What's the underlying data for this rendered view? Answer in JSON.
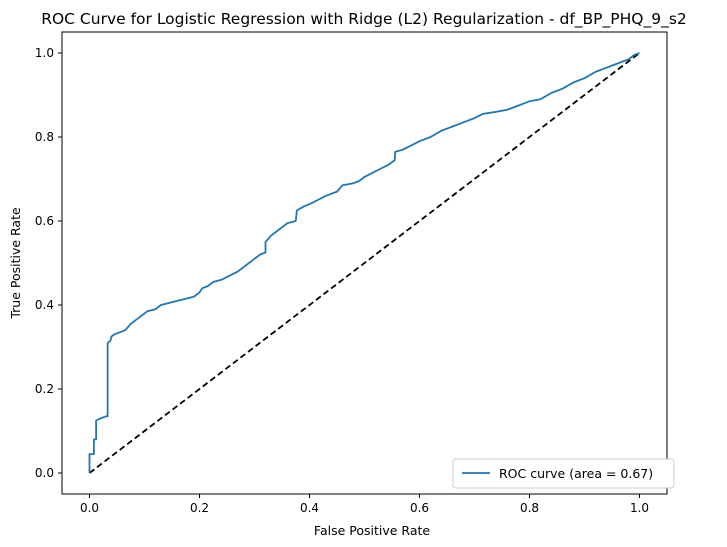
{
  "chart_data": {
    "type": "line",
    "title": "ROC Curve for Logistic Regression with Ridge (L2) Regularization - df_BP_PHQ_9_s2",
    "xlabel": "False Positive Rate",
    "ylabel": "True Positive Rate",
    "xlim": [
      -0.05,
      1.05
    ],
    "ylim": [
      -0.05,
      1.05
    ],
    "xticks": [
      0.0,
      0.2,
      0.4,
      0.6,
      0.8,
      1.0
    ],
    "yticks": [
      0.0,
      0.2,
      0.4,
      0.6,
      0.8,
      1.0
    ],
    "xtick_labels": [
      "0.0",
      "0.2",
      "0.4",
      "0.6",
      "0.8",
      "1.0"
    ],
    "ytick_labels": [
      "0.0",
      "0.2",
      "0.4",
      "0.6",
      "0.8",
      "1.0"
    ],
    "grid": false,
    "legend_position": "lower-right",
    "series": [
      {
        "name": "ROC curve (area = 0.67)",
        "color": "#1f77b4",
        "style": "solid",
        "step": true,
        "points": [
          [
            0.0,
            0.0
          ],
          [
            0.0,
            0.045
          ],
          [
            0.008,
            0.045
          ],
          [
            0.008,
            0.08
          ],
          [
            0.012,
            0.08
          ],
          [
            0.012,
            0.125
          ],
          [
            0.02,
            0.13
          ],
          [
            0.03,
            0.135
          ],
          [
            0.033,
            0.135
          ],
          [
            0.033,
            0.31
          ],
          [
            0.038,
            0.315
          ],
          [
            0.04,
            0.325
          ],
          [
            0.045,
            0.33
          ],
          [
            0.055,
            0.335
          ],
          [
            0.065,
            0.34
          ],
          [
            0.075,
            0.355
          ],
          [
            0.085,
            0.365
          ],
          [
            0.095,
            0.375
          ],
          [
            0.105,
            0.385
          ],
          [
            0.12,
            0.39
          ],
          [
            0.13,
            0.4
          ],
          [
            0.145,
            0.405
          ],
          [
            0.16,
            0.41
          ],
          [
            0.175,
            0.415
          ],
          [
            0.19,
            0.42
          ],
          [
            0.2,
            0.43
          ],
          [
            0.205,
            0.44
          ],
          [
            0.215,
            0.445
          ],
          [
            0.225,
            0.455
          ],
          [
            0.24,
            0.46
          ],
          [
            0.255,
            0.47
          ],
          [
            0.27,
            0.48
          ],
          [
            0.28,
            0.49
          ],
          [
            0.29,
            0.5
          ],
          [
            0.3,
            0.51
          ],
          [
            0.31,
            0.52
          ],
          [
            0.32,
            0.525
          ],
          [
            0.32,
            0.55
          ],
          [
            0.33,
            0.565
          ],
          [
            0.34,
            0.575
          ],
          [
            0.35,
            0.585
          ],
          [
            0.36,
            0.595
          ],
          [
            0.375,
            0.6
          ],
          [
            0.377,
            0.625
          ],
          [
            0.39,
            0.635
          ],
          [
            0.4,
            0.64
          ],
          [
            0.415,
            0.65
          ],
          [
            0.43,
            0.66
          ],
          [
            0.44,
            0.665
          ],
          [
            0.45,
            0.67
          ],
          [
            0.46,
            0.685
          ],
          [
            0.48,
            0.69
          ],
          [
            0.49,
            0.695
          ],
          [
            0.5,
            0.705
          ],
          [
            0.515,
            0.715
          ],
          [
            0.53,
            0.725
          ],
          [
            0.545,
            0.735
          ],
          [
            0.555,
            0.745
          ],
          [
            0.556,
            0.765
          ],
          [
            0.57,
            0.77
          ],
          [
            0.585,
            0.78
          ],
          [
            0.6,
            0.79
          ],
          [
            0.62,
            0.8
          ],
          [
            0.64,
            0.815
          ],
          [
            0.66,
            0.825
          ],
          [
            0.68,
            0.835
          ],
          [
            0.7,
            0.845
          ],
          [
            0.715,
            0.855
          ],
          [
            0.74,
            0.86
          ],
          [
            0.76,
            0.865
          ],
          [
            0.78,
            0.875
          ],
          [
            0.8,
            0.885
          ],
          [
            0.82,
            0.89
          ],
          [
            0.84,
            0.905
          ],
          [
            0.86,
            0.915
          ],
          [
            0.88,
            0.93
          ],
          [
            0.9,
            0.94
          ],
          [
            0.92,
            0.955
          ],
          [
            0.94,
            0.965
          ],
          [
            0.96,
            0.975
          ],
          [
            0.98,
            0.985
          ],
          [
            0.99,
            0.995
          ],
          [
            1.0,
            1.0
          ]
        ]
      },
      {
        "name": "",
        "color": "#000000",
        "style": "dashed",
        "step": false,
        "points": [
          [
            0.0,
            0.0
          ],
          [
            1.0,
            1.0
          ]
        ]
      }
    ]
  }
}
